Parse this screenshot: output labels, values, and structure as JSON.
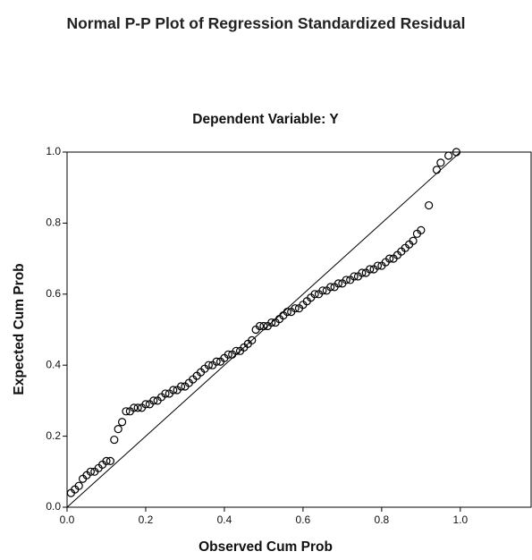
{
  "chart_data": {
    "type": "scatter",
    "title": "Normal P-P Plot of Regression Standardized Residual",
    "subtitle": "Dependent Variable: Y",
    "x_label": "Observed Cum Prob",
    "y_label": "Expected Cum Prob",
    "xlim": [
      0,
      1.18
    ],
    "ylim": [
      0,
      1
    ],
    "xticks": [
      {
        "value": 0,
        "label": "0.0"
      },
      0.2,
      0.4,
      0.6,
      0.8,
      {
        "value": 1,
        "label": "1.0"
      }
    ],
    "yticks": [
      {
        "value": 0,
        "label": "0.0"
      },
      0.2,
      0.4,
      0.6,
      0.8,
      {
        "value": 1,
        "label": "1.0"
      }
    ],
    "color": "#000000",
    "x": [
      0.01,
      0.02,
      0.03,
      0.04,
      0.05,
      0.06,
      0.07,
      0.08,
      0.09,
      0.1,
      0.11,
      0.12,
      0.13,
      0.14,
      0.15,
      0.16,
      0.17,
      0.18,
      0.19,
      0.2,
      0.21,
      0.22,
      0.23,
      0.24,
      0.25,
      0.26,
      0.27,
      0.28,
      0.29,
      0.3,
      0.31,
      0.32,
      0.33,
      0.34,
      0.35,
      0.36,
      0.37,
      0.38,
      0.39,
      0.4,
      0.41,
      0.42,
      0.43,
      0.44,
      0.45,
      0.46,
      0.47,
      0.48,
      0.49,
      0.5,
      0.51,
      0.52,
      0.53,
      0.54,
      0.55,
      0.56,
      0.57,
      0.58,
      0.59,
      0.6,
      0.61,
      0.62,
      0.63,
      0.64,
      0.65,
      0.66,
      0.67,
      0.68,
      0.69,
      0.7,
      0.71,
      0.72,
      0.73,
      0.74,
      0.75,
      0.76,
      0.77,
      0.78,
      0.79,
      0.8,
      0.81,
      0.82,
      0.83,
      0.84,
      0.85,
      0.86,
      0.87,
      0.88,
      0.89,
      0.9,
      0.92,
      0.94,
      0.95,
      0.97,
      0.99
    ],
    "values": [
      0.04,
      0.05,
      0.06,
      0.08,
      0.09,
      0.1,
      0.1,
      0.11,
      0.12,
      0.13,
      0.13,
      0.19,
      0.22,
      0.24,
      0.27,
      0.27,
      0.28,
      0.28,
      0.28,
      0.29,
      0.29,
      0.3,
      0.3,
      0.31,
      0.32,
      0.32,
      0.33,
      0.33,
      0.34,
      0.34,
      0.35,
      0.36,
      0.37,
      0.38,
      0.39,
      0.4,
      0.4,
      0.41,
      0.41,
      0.42,
      0.43,
      0.43,
      0.44,
      0.44,
      0.45,
      0.46,
      0.47,
      0.5,
      0.51,
      0.51,
      0.51,
      0.52,
      0.52,
      0.53,
      0.54,
      0.55,
      0.55,
      0.56,
      0.56,
      0.57,
      0.58,
      0.59,
      0.6,
      0.6,
      0.61,
      0.61,
      0.62,
      0.62,
      0.63,
      0.63,
      0.64,
      0.64,
      0.65,
      0.65,
      0.66,
      0.66,
      0.67,
      0.67,
      0.68,
      0.68,
      0.69,
      0.7,
      0.7,
      0.71,
      0.72,
      0.73,
      0.74,
      0.75,
      0.77,
      0.78,
      0.85,
      0.95,
      0.97,
      0.99,
      1.0
    ]
  }
}
